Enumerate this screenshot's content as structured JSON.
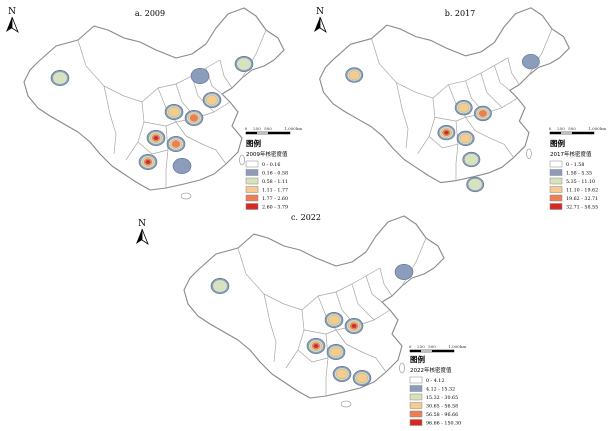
{
  "colors": {
    "class1": "#ffffff",
    "class2": "#8b9dbb",
    "class3": "#d7e2bf",
    "class4": "#f6cb8f",
    "class5": "#ee7f55",
    "class6": "#d52a24",
    "boundary": "#8a8a8a"
  },
  "north_label": "N",
  "scale_bar": {
    "ticks": [
      "0",
      "250",
      "500",
      "1,000"
    ],
    "unit": "km"
  },
  "panels": [
    {
      "title": "a. 2009",
      "legend_title": "图例",
      "legend_subtitle": "2009年核密度值",
      "classes": [
        "0 - 0.16",
        "0.16 - 0.58",
        "0.58 - 1.11",
        "1.11 - 1.77",
        "1.77 - 2.60",
        "2.60 - 3.79"
      ],
      "hotspots": [
        {
          "region": "xinjiang",
          "level": 3
        },
        {
          "region": "shandong",
          "level": 4
        },
        {
          "region": "beijing",
          "level": 2
        },
        {
          "region": "shaanxi",
          "level": 4
        },
        {
          "region": "henan",
          "level": 5
        },
        {
          "region": "sichuan",
          "level": 6
        },
        {
          "region": "chongqing",
          "level": 5
        },
        {
          "region": "yunnan",
          "level": 6
        },
        {
          "region": "guangxi",
          "level": 2
        },
        {
          "region": "northeast",
          "level": 3
        }
      ]
    },
    {
      "title": "b. 2017",
      "legend_title": "图例",
      "legend_subtitle": "2017年核密度值",
      "classes": [
        "0 - 1.58",
        "1.58 - 5.35",
        "5.35 - 11.10",
        "11.10 - 19.62",
        "19.62 - 32.71",
        "32.71 - 58.55"
      ],
      "hotspots": [
        {
          "region": "xinjiang",
          "level": 4
        },
        {
          "region": "shaanxi",
          "level": 4
        },
        {
          "region": "henan",
          "level": 5
        },
        {
          "region": "sichuan",
          "level": 6
        },
        {
          "region": "chongqing",
          "level": 4
        },
        {
          "region": "guangxi",
          "level": 3
        },
        {
          "region": "hainan",
          "level": 3
        },
        {
          "region": "northeast",
          "level": 2
        }
      ]
    },
    {
      "title": "c. 2022",
      "legend_title": "图例",
      "legend_subtitle": "2022年核密度值",
      "classes": [
        "0 - 4.12",
        "4.12 - 15.32",
        "15.32 - 30.65",
        "30.65 - 56.58",
        "56.58 - 96.66",
        "96.66 - 150.30"
      ],
      "hotspots": [
        {
          "region": "xinjiang",
          "level": 3
        },
        {
          "region": "shaanxi",
          "level": 4
        },
        {
          "region": "henan",
          "level": 6
        },
        {
          "region": "sichuan",
          "level": 6
        },
        {
          "region": "chongqing",
          "level": 4
        },
        {
          "region": "guangxi",
          "level": 4
        },
        {
          "region": "guangdong",
          "level": 4
        },
        {
          "region": "northeast",
          "level": 2
        }
      ]
    }
  ]
}
